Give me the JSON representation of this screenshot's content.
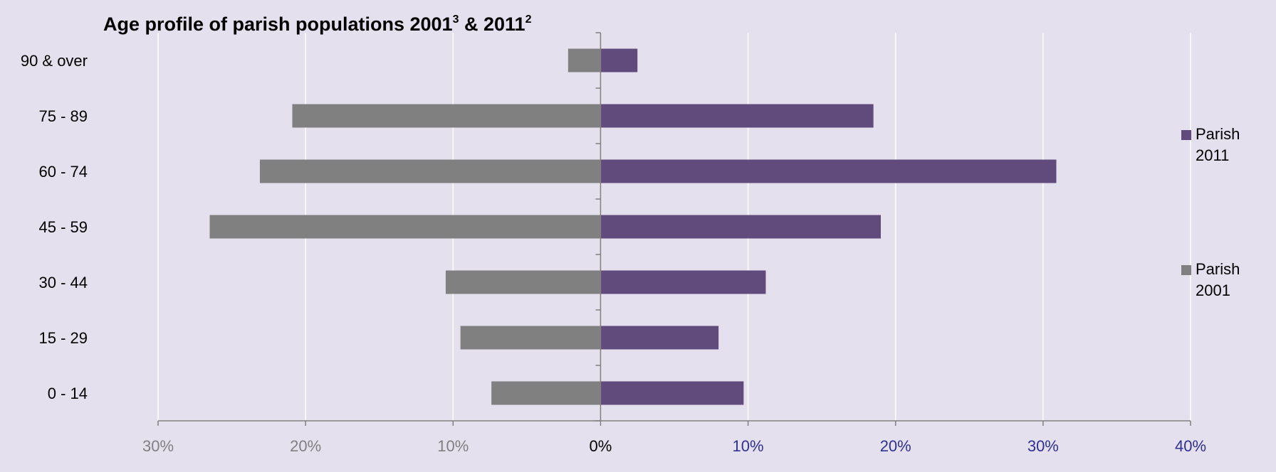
{
  "chart_data": {
    "type": "bar",
    "orientation": "horizontal",
    "title": "Age profile of parish populations 2001",
    "title_sup1": "3",
    "title_mid": " & 2011",
    "title_sup2": "2",
    "categories": [
      "90 & over",
      "75 - 89",
      "60 - 74",
      "45 - 59",
      "30 - 44",
      "15 - 29",
      "0 - 14"
    ],
    "series": [
      {
        "name": "Parish 2011",
        "legend_lines": [
          "Parish",
          "2011"
        ],
        "side": "right",
        "color": "#614b7c",
        "values": [
          2.5,
          18.5,
          30.9,
          19.0,
          11.2,
          8.0,
          9.7
        ]
      },
      {
        "name": "Parish 2001",
        "legend_lines": [
          "Parish",
          "2001"
        ],
        "side": "left",
        "color": "#808080",
        "values": [
          2.2,
          20.9,
          23.1,
          26.5,
          10.5,
          9.5,
          7.4
        ]
      }
    ],
    "xlim": [
      -30,
      40
    ],
    "xticks": [
      {
        "value": -30,
        "label": "30%",
        "color": "#808080"
      },
      {
        "value": -20,
        "label": "20%",
        "color": "#808080"
      },
      {
        "value": -10,
        "label": "10%",
        "color": "#808080"
      },
      {
        "value": 0,
        "label": "0%",
        "color": "#000000"
      },
      {
        "value": 10,
        "label": "10%",
        "color": "#2e3192"
      },
      {
        "value": 20,
        "label": "20%",
        "color": "#2e3192"
      },
      {
        "value": 30,
        "label": "30%",
        "color": "#2e3192"
      },
      {
        "value": 40,
        "label": "40%",
        "color": "#2e3192"
      }
    ],
    "grid": true,
    "legend_position": "right",
    "background_color": "#e5e0ee"
  }
}
